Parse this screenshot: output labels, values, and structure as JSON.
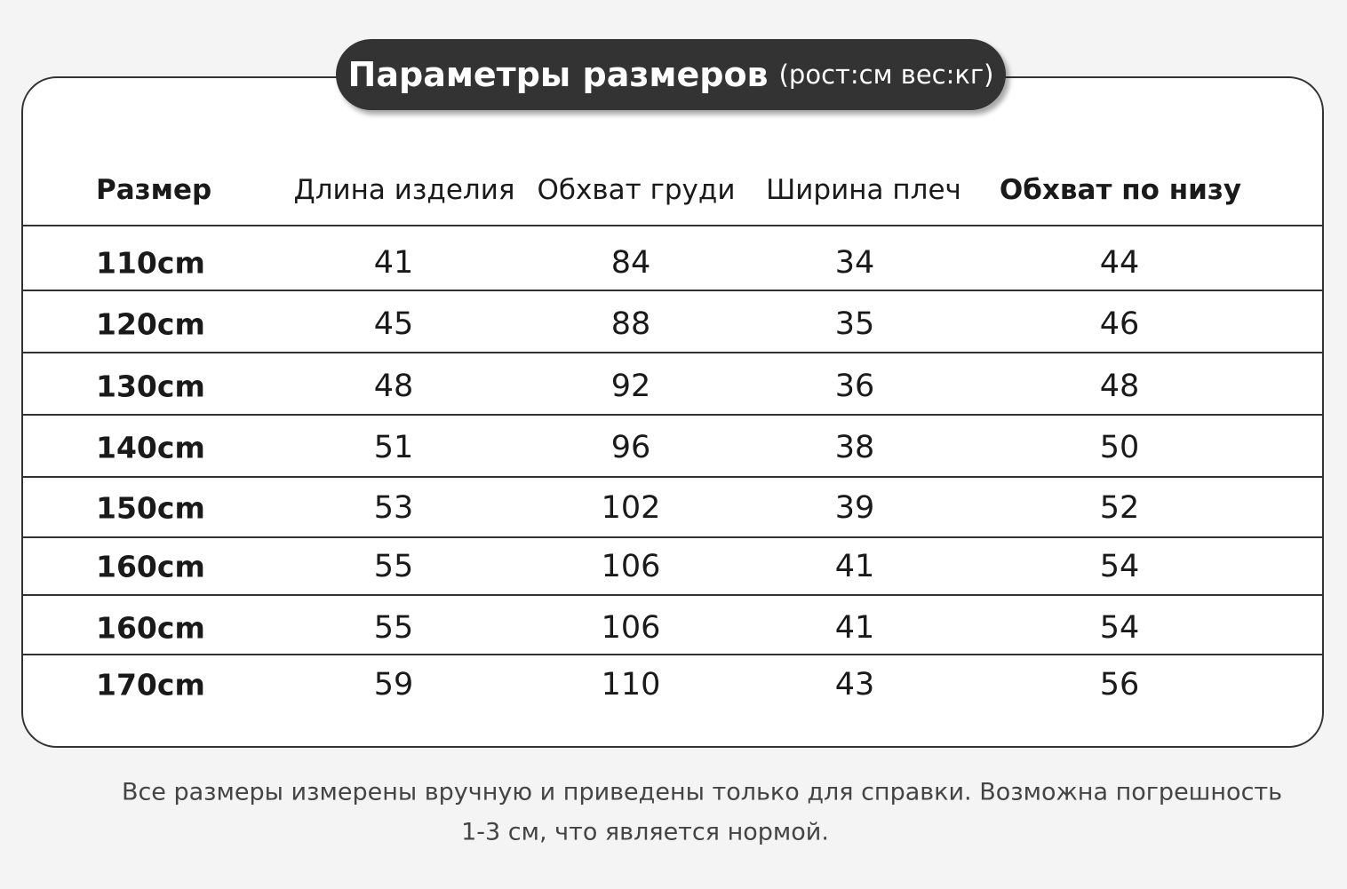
{
  "header": {
    "title": "Параметры размеров",
    "subtitle": "(рост:см вес:кг)"
  },
  "table": {
    "columns": [
      "Размер",
      "Длина изделия",
      "Обхват груди",
      "Ширина плеч",
      "Обхват по низу"
    ],
    "rows": [
      [
        "110cm",
        41,
        84,
        34,
        44
      ],
      [
        "120cm",
        45,
        88,
        35,
        46
      ],
      [
        "130cm",
        48,
        92,
        36,
        48
      ],
      [
        "140cm",
        51,
        96,
        38,
        50
      ],
      [
        "150cm",
        53,
        102,
        39,
        52
      ],
      [
        "160cm",
        55,
        106,
        41,
        54
      ],
      [
        "160cm",
        55,
        106,
        41,
        54
      ],
      [
        "170cm",
        59,
        110,
        43,
        56
      ]
    ]
  },
  "note": {
    "lines": [
      "Все размеры измерены вручную и приведены только для справки. Возможна погрешность",
      "1-3 см, что является нормой."
    ]
  }
}
